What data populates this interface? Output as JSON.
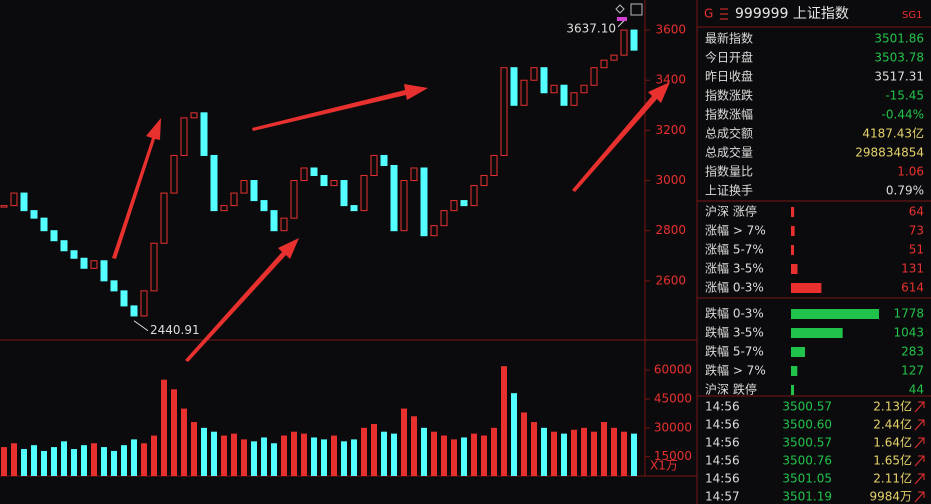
{
  "chart_data": [
    {
      "type": "line",
      "color_up": "#e8312f",
      "color_down": "#54ffff",
      "ylim": [
        2380,
        3700
      ],
      "yticks": [
        2600,
        2800,
        3000,
        3200,
        3400,
        3600
      ],
      "values": [
        2900,
        2950,
        2880,
        2850,
        2800,
        2760,
        2720,
        2690,
        2650,
        2680,
        2600,
        2560,
        2500,
        2460,
        2560,
        2750,
        2950,
        3100,
        3250,
        3270,
        3100,
        2880,
        2900,
        2950,
        3000,
        2920,
        2880,
        2800,
        2850,
        3000,
        3050,
        3020,
        2980,
        3000,
        2900,
        2880,
        3020,
        3100,
        3060,
        2800,
        3000,
        3050,
        2780,
        2820,
        2880,
        2920,
        2900,
        2980,
        3020,
        3100,
        3450,
        3300,
        3400,
        3450,
        3350,
        3380,
        3300,
        3350,
        3380,
        3450,
        3480,
        3500,
        3600,
        3520
      ],
      "annotations": [
        {
          "label": "3637.10",
          "value": 3637.1,
          "index": 62
        },
        {
          "label": "2440.91",
          "value": 2440.91,
          "index": 13
        }
      ]
    },
    {
      "type": "bar",
      "unit": "X1万",
      "ylim": [
        5000,
        73000
      ],
      "yticks": [
        15000,
        30000,
        45000,
        60000
      ],
      "values": [
        20000,
        22000,
        19000,
        21000,
        18000,
        20000,
        23000,
        19000,
        21000,
        22000,
        20000,
        18000,
        21000,
        24000,
        22000,
        26000,
        55000,
        50000,
        40000,
        33000,
        30000,
        28000,
        26000,
        27000,
        24000,
        23000,
        25000,
        22000,
        26000,
        28000,
        27000,
        25000,
        24000,
        26000,
        23000,
        24000,
        30000,
        32000,
        28000,
        27000,
        40000,
        36000,
        30000,
        28000,
        26000,
        24000,
        25000,
        27000,
        26000,
        30000,
        62000,
        48000,
        38000,
        33000,
        30000,
        28000,
        27000,
        29000,
        30000,
        28000,
        33000,
        30000,
        28000,
        27000
      ]
    }
  ],
  "quote_panel": {
    "market": "G",
    "title": "999999 上证指数",
    "badge": "SG1",
    "stats": [
      {
        "label": "最新指数",
        "value": "3501.86",
        "color": "#22c34a"
      },
      {
        "label": "今日开盘",
        "value": "3503.78",
        "color": "#22c34a"
      },
      {
        "label": "昨日收盘",
        "value": "3517.31",
        "color": "#dddddd"
      },
      {
        "label": "指数涨跌",
        "value": "-15.45",
        "color": "#22c34a"
      },
      {
        "label": "指数涨幅",
        "value": "-0.44%",
        "color": "#22c34a"
      },
      {
        "label": "总成交额",
        "value": "4187.43亿",
        "color": "#e6d26a"
      },
      {
        "label": "总成交量",
        "value": "298834854",
        "color": "#e6d26a"
      },
      {
        "label": "指数量比",
        "value": "1.06",
        "color": "#e8312f"
      },
      {
        "label": "上证换手",
        "value": "0.79%",
        "color": "#dddddd"
      }
    ],
    "breadth": [
      {
        "label": "沪深 涨停",
        "count": 64,
        "color": "#e8312f"
      },
      {
        "label": "涨幅 > 7%",
        "count": 73,
        "color": "#e8312f"
      },
      {
        "label": "涨幅 5-7%",
        "count": 51,
        "color": "#e8312f"
      },
      {
        "label": "涨幅 3-5%",
        "count": 131,
        "color": "#e8312f"
      },
      {
        "label": "涨幅 0-3%",
        "count": 614,
        "color": "#e8312f"
      },
      {
        "label": "跌幅 0-3%",
        "count": 1778,
        "color": "#22c34a"
      },
      {
        "label": "跌幅 3-5%",
        "count": 1043,
        "color": "#22c34a"
      },
      {
        "label": "跌幅 5-7%",
        "count": 283,
        "color": "#22c34a"
      },
      {
        "label": "跌幅 > 7%",
        "count": 127,
        "color": "#22c34a"
      },
      {
        "label": "沪深 跌停",
        "count": 44,
        "color": "#22c34a"
      }
    ],
    "ticks": [
      [
        "14:56",
        "3500.57",
        "2.13亿"
      ],
      [
        "14:56",
        "3500.60",
        "2.44亿"
      ],
      [
        "14:56",
        "3500.57",
        "1.64亿"
      ],
      [
        "14:56",
        "3500.76",
        "1.65亿"
      ],
      [
        "14:56",
        "3501.05",
        "2.11亿"
      ],
      [
        "14:57",
        "3501.19",
        "9984万"
      ]
    ]
  }
}
